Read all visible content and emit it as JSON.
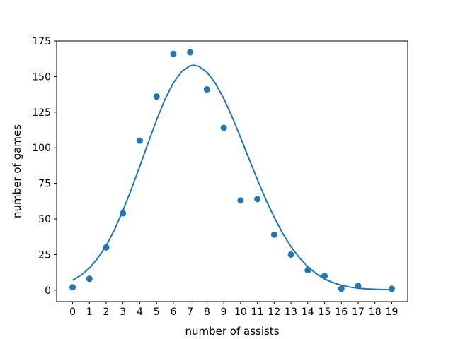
{
  "chart_data": {
    "type": "scatter",
    "xlabel": "number of assists",
    "ylabel": "number of games",
    "xlim": [
      -0.95,
      19.95
    ],
    "ylim": [
      -8,
      175
    ],
    "x_ticks": [
      0,
      1,
      2,
      3,
      4,
      5,
      6,
      7,
      8,
      9,
      10,
      11,
      12,
      13,
      14,
      15,
      16,
      17,
      18,
      19
    ],
    "y_ticks": [
      0,
      25,
      50,
      75,
      100,
      125,
      150,
      175
    ],
    "grid": false,
    "colors": {
      "series": "#1f77b4",
      "axis": "#000000",
      "background": "#ffffff"
    },
    "series": [
      {
        "kind": "points",
        "x": [
          0,
          1,
          2,
          3,
          4,
          5,
          6,
          7,
          8,
          9,
          10,
          11,
          12,
          13,
          14,
          15,
          16,
          17,
          19
        ],
        "y": [
          2,
          8,
          30,
          54,
          105,
          136,
          166,
          167,
          141,
          114,
          63,
          64,
          39,
          25,
          14,
          10,
          1,
          3,
          1
        ]
      },
      {
        "kind": "fit-curve",
        "x": [
          0,
          0.5,
          1,
          1.5,
          2,
          2.5,
          3,
          3.5,
          4,
          4.5,
          5,
          5.5,
          6,
          6.5,
          7,
          7.2,
          7.5,
          8,
          8.5,
          9,
          9.5,
          10,
          10.5,
          11,
          11.5,
          12,
          12.5,
          13,
          13.5,
          14,
          14.5,
          15,
          15.5,
          16,
          16.5,
          17,
          17.5,
          18,
          18.5,
          19
        ],
        "y": [
          7,
          10.5,
          15.5,
          22.5,
          31.3,
          42.5,
          56,
          71,
          87,
          103.5,
          119.5,
          134,
          145.6,
          153.6,
          157.6,
          158,
          157.3,
          153,
          145.3,
          134.6,
          121.6,
          107.2,
          92.3,
          77.7,
          63.8,
          51.2,
          40.1,
          30.6,
          22.8,
          16.5,
          11.6,
          7.9,
          5.3,
          3.4,
          2.2,
          1.4,
          0.9,
          0.6,
          0.4,
          0.3
        ]
      }
    ]
  }
}
